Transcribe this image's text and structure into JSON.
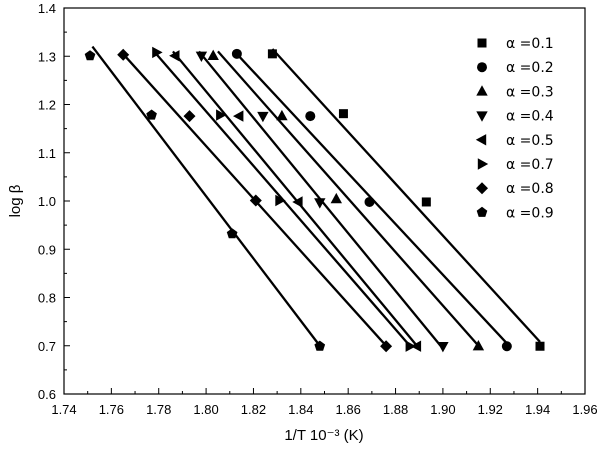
{
  "chart_data": {
    "type": "scatter",
    "xlabel": "1/T 10⁻³ (K)",
    "ylabel": "log β",
    "xlim": [
      1.74,
      1.96
    ],
    "ylim": [
      0.6,
      1.4
    ],
    "x_ticks": [
      "1.74",
      "1.76",
      "1.78",
      "1.80",
      "1.82",
      "1.84",
      "1.86",
      "1.88",
      "1.90",
      "1.92",
      "1.94",
      "1.96"
    ],
    "y_ticks": [
      "0.6",
      "0.7",
      "0.8",
      "0.9",
      "1.0",
      "1.1",
      "1.2",
      "1.3",
      "1.4"
    ],
    "grid": false,
    "legend_position": "top-right",
    "series": [
      {
        "name": "α =0.1",
        "marker": "square",
        "x": [
          1.828,
          1.858,
          1.893,
          1.941
        ],
        "y": [
          1.305,
          1.181,
          0.998,
          0.699
        ],
        "line": [
          [
            1.828,
            1.315
          ],
          [
            1.941,
            0.708
          ]
        ]
      },
      {
        "name": "α =0.2",
        "marker": "circle",
        "x": [
          1.813,
          1.844,
          1.869,
          1.927
        ],
        "y": [
          1.305,
          1.176,
          0.998,
          0.699
        ],
        "line": [
          [
            1.812,
            1.31
          ],
          [
            1.927,
            0.705
          ]
        ]
      },
      {
        "name": "α =0.3",
        "marker": "triangle-up",
        "x": [
          1.803,
          1.832,
          1.855,
          1.915
        ],
        "y": [
          1.301,
          1.176,
          1.004,
          0.699
        ],
        "line": [
          [
            1.805,
            1.31
          ],
          [
            1.915,
            0.7
          ]
        ]
      },
      {
        "name": "α =0.4",
        "marker": "triangle-down",
        "x": [
          1.798,
          1.824,
          1.848,
          1.9
        ],
        "y": [
          1.301,
          1.176,
          0.997,
          0.699
        ],
        "line": [
          [
            1.797,
            1.31
          ],
          [
            1.899,
            0.7
          ]
        ]
      },
      {
        "name": "α =0.5",
        "marker": "triangle-left",
        "x": [
          1.787,
          1.814,
          1.839,
          1.889
        ],
        "y": [
          1.301,
          1.176,
          0.998,
          0.699
        ],
        "line": [
          [
            1.786,
            1.31
          ],
          [
            1.889,
            0.7
          ]
        ]
      },
      {
        "name": "α =0.7",
        "marker": "triangle-right",
        "x": [
          1.779,
          1.806,
          1.831,
          1.886
        ],
        "y": [
          1.308,
          1.178,
          1.001,
          0.699
        ],
        "line": [
          [
            1.778,
            1.31
          ],
          [
            1.886,
            0.7
          ]
        ]
      },
      {
        "name": "α =0.8",
        "marker": "diamond",
        "x": [
          1.765,
          1.793,
          1.821,
          1.876
        ],
        "y": [
          1.303,
          1.176,
          1.001,
          0.699
        ],
        "line": [
          [
            1.764,
            1.31
          ],
          [
            1.876,
            0.7
          ]
        ]
      },
      {
        "name": "α =0.9",
        "marker": "pentagon",
        "x": [
          1.751,
          1.777,
          1.811,
          1.848
        ],
        "y": [
          1.301,
          1.178,
          0.932,
          0.699
        ],
        "line": [
          [
            1.752,
            1.32
          ],
          [
            1.848,
            0.7
          ]
        ]
      }
    ]
  }
}
